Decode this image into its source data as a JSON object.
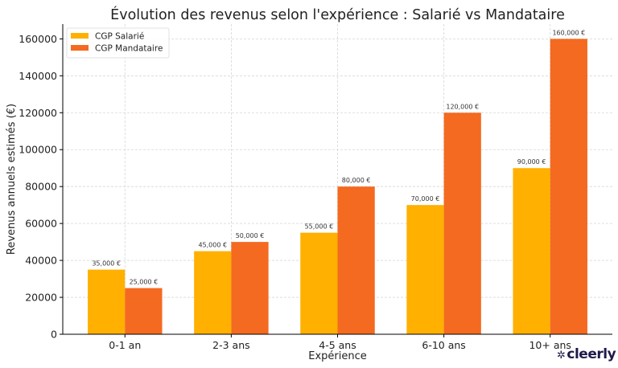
{
  "chart_data": {
    "type": "bar",
    "title": "Évolution des revenus selon l'expérience : Salarié vs Mandataire",
    "xlabel": "Expérience",
    "ylabel": "Revenus annuels estimés (€)",
    "categories": [
      "0-1 an",
      "2-3 ans",
      "4-5 ans",
      "6-10 ans",
      "10+ ans"
    ],
    "series": [
      {
        "name": "CGP Salarié",
        "color": "#FFB000",
        "values": [
          35000,
          45000,
          55000,
          70000,
          90000
        ],
        "labels": [
          "35,000 €",
          "45,000 €",
          "55,000 €",
          "70,000 €",
          "90,000 €"
        ]
      },
      {
        "name": "CGP Mandataire",
        "color": "#F46A20",
        "values": [
          25000,
          50000,
          80000,
          120000,
          160000
        ],
        "labels": [
          "25,000 €",
          "50,000 €",
          "80,000 €",
          "120,000 €",
          "160,000 €"
        ]
      }
    ],
    "yticks": [
      0,
      20000,
      40000,
      60000,
      80000,
      100000,
      120000,
      140000,
      160000
    ],
    "ylim": [
      0,
      168000
    ],
    "grid": true,
    "legend": "top-left"
  },
  "logo": {
    "text": "cleerly"
  }
}
